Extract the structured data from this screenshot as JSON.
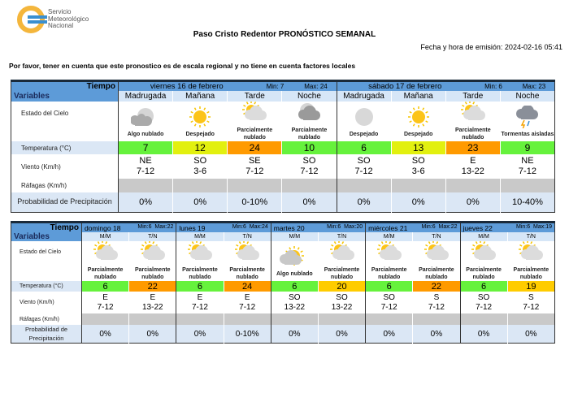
{
  "header": {
    "logo_text": [
      "Servicio",
      "Meteorológico",
      "Nacional"
    ],
    "title": "Paso Cristo Redentor PRONÓSTICO SEMANAL",
    "emision": "Fecha y hora de emisión: 2024-02-16 05:41",
    "note": "Por favor, tener en cuenta que este pronostico es de escala regional y no tiene en cuenta factores locales"
  },
  "labels": {
    "tiempo": "Tiempo",
    "variables": "Variables",
    "cielo": "Estado del Cielo",
    "temp": "Temperatura (°C)",
    "viento": "Viento (Km/h)",
    "rafagas": "Ráfagas (Km/h)",
    "prob": "Probabilidad de Precipitación"
  },
  "colors": {
    "header": "#5d9bd8",
    "green": "#66f23c",
    "yellow": "#e2f00f",
    "orange": "#ff9a00",
    "gold": "#ffcc00",
    "gray": "#c9c9c9"
  },
  "table1": [
    {
      "day": "viernes 16 de febrero",
      "min": "Min: 7",
      "max": "Max: 24",
      "periods": [
        {
          "name": "Madrugada",
          "icon": "night-partly-cloudy",
          "sky": "Algo nublado",
          "temp": "7",
          "color": "green",
          "dir": "NE",
          "speed": "7-12",
          "prob": "0%"
        },
        {
          "name": "Mañana",
          "icon": "sun",
          "sky": "Despejado",
          "temp": "12",
          "color": "yellow",
          "dir": "SO",
          "speed": "3-6",
          "prob": "0%"
        },
        {
          "name": "Tarde",
          "icon": "sun-cloud",
          "sky": "Parcialmente nublado",
          "temp": "24",
          "color": "orange",
          "dir": "SE",
          "speed": "7-12",
          "prob": "0-10%"
        },
        {
          "name": "Noche",
          "icon": "moon-cloud",
          "sky": "Parcialmente nublado",
          "temp": "10",
          "color": "green",
          "dir": "SO",
          "speed": "7-12",
          "prob": "0%"
        }
      ]
    },
    {
      "day": "sábado 17 de febrero",
      "min": "Min: 6",
      "max": "Max: 23",
      "periods": [
        {
          "name": "Madrugada",
          "icon": "moon",
          "sky": "Despejado",
          "temp": "6",
          "color": "green",
          "dir": "SO",
          "speed": "7-12",
          "prob": "0%"
        },
        {
          "name": "Mañana",
          "icon": "sun",
          "sky": "Despejado",
          "temp": "13",
          "color": "yellow",
          "dir": "SO",
          "speed": "3-6",
          "prob": "0%"
        },
        {
          "name": "Tarde",
          "icon": "sun-cloud",
          "sky": "Parcialmente nublado",
          "temp": "23",
          "color": "orange",
          "dir": "E",
          "speed": "13-22",
          "prob": "0%"
        },
        {
          "name": "Noche",
          "icon": "storm",
          "sky": "Tormentas aisladas",
          "temp": "9",
          "color": "green",
          "dir": "NE",
          "speed": "7-12",
          "prob": "10-40%"
        }
      ]
    }
  ],
  "table2": [
    {
      "day": "domingo 18",
      "min": "Min:6",
      "max": "Max:22",
      "periods": [
        {
          "name": "M/M",
          "icon": "sun-cloud",
          "sky": "Parcialmente nublado",
          "temp": "6",
          "color": "green",
          "dir": "E",
          "speed": "7-12",
          "prob": "0%"
        },
        {
          "name": "T/N",
          "icon": "sun-cloud",
          "sky": "Parcialmente nublado",
          "temp": "22",
          "color": "orange",
          "dir": "E",
          "speed": "13-22",
          "prob": "0%"
        }
      ]
    },
    {
      "day": "lunes 19",
      "min": "Min:6",
      "max": "Max:24",
      "periods": [
        {
          "name": "M/M",
          "icon": "sun-cloud",
          "sky": "Parcialmente nublado",
          "temp": "6",
          "color": "green",
          "dir": "E",
          "speed": "7-12",
          "prob": "0%"
        },
        {
          "name": "T/N",
          "icon": "sun-cloud",
          "sky": "Parcialmente nublado",
          "temp": "24",
          "color": "orange",
          "dir": "E",
          "speed": "7-12",
          "prob": "0-10%"
        }
      ]
    },
    {
      "day": "martes 20",
      "min": "Min:6",
      "max": "Max:20",
      "periods": [
        {
          "name": "M/M",
          "icon": "sun-small-cloud",
          "sky": "Algo nublado",
          "temp": "6",
          "color": "green",
          "dir": "SO",
          "speed": "13-22",
          "prob": "0%"
        },
        {
          "name": "T/N",
          "icon": "sun-cloud",
          "sky": "Parcialmente nublado",
          "temp": "20",
          "color": "gold",
          "dir": "SO",
          "speed": "13-22",
          "prob": "0%"
        }
      ]
    },
    {
      "day": "miércoles 21",
      "min": "Min:6",
      "max": "Max:22",
      "periods": [
        {
          "name": "M/M",
          "icon": "sun-cloud",
          "sky": "Parcialmente nublado",
          "temp": "6",
          "color": "green",
          "dir": "SO",
          "speed": "7-12",
          "prob": "0%"
        },
        {
          "name": "T/N",
          "icon": "sun-cloud",
          "sky": "Parcialmente nublado",
          "temp": "22",
          "color": "orange",
          "dir": "S",
          "speed": "7-12",
          "prob": "0%"
        }
      ]
    },
    {
      "day": "jueves 22",
      "min": "Min:6",
      "max": "Max:19",
      "periods": [
        {
          "name": "M/M",
          "icon": "sun-cloud",
          "sky": "Parcialmente nublado",
          "temp": "6",
          "color": "green",
          "dir": "SO",
          "speed": "7-12",
          "prob": "0%"
        },
        {
          "name": "T/N",
          "icon": "sun-cloud",
          "sky": "Parcialmente nublado",
          "temp": "19",
          "color": "gold",
          "dir": "S",
          "speed": "7-12",
          "prob": "0%"
        }
      ]
    }
  ]
}
